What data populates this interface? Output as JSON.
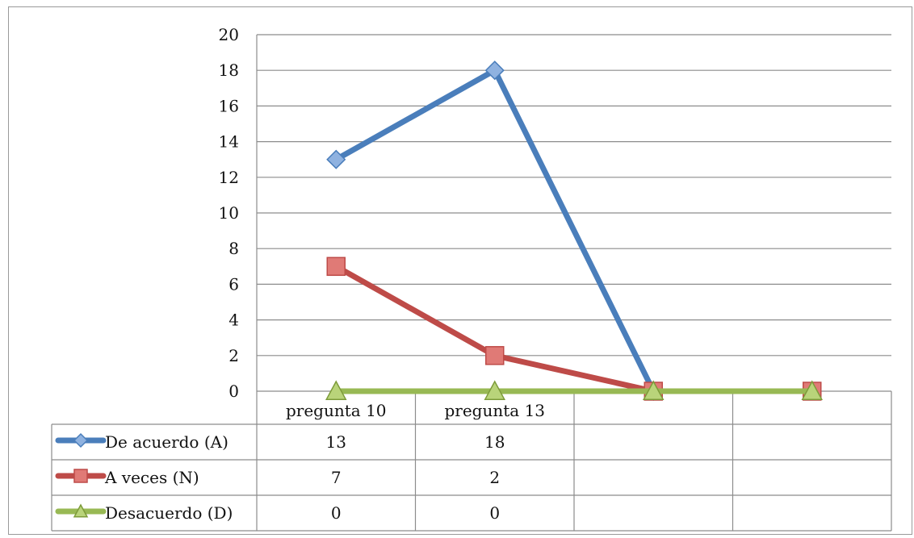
{
  "chart_data": {
    "type": "line",
    "categories": [
      "pregunta 10",
      "pregunta 13",
      "",
      ""
    ],
    "series": [
      {
        "name": "De acuerdo (A)",
        "values": [
          13,
          18,
          0,
          null
        ],
        "color": "#4a7ebb",
        "marker": "diamond",
        "table_values": [
          "13",
          "18",
          "",
          ""
        ]
      },
      {
        "name": "A veces (N)",
        "values": [
          7,
          2,
          0,
          0
        ],
        "color": "#be4b48",
        "marker": "square",
        "table_values": [
          "7",
          "2",
          "",
          ""
        ]
      },
      {
        "name": "Desacuerdo (D)",
        "values": [
          0,
          0,
          0,
          0
        ],
        "color": "#98b954",
        "marker": "triangle",
        "table_values": [
          "0",
          "0",
          "",
          ""
        ]
      }
    ],
    "yticks": [
      "0",
      "2",
      "4",
      "6",
      "8",
      "10",
      "12",
      "14",
      "16",
      "18",
      "20"
    ],
    "ylim": [
      0,
      20
    ],
    "grid": true,
    "legend": "data-table"
  }
}
